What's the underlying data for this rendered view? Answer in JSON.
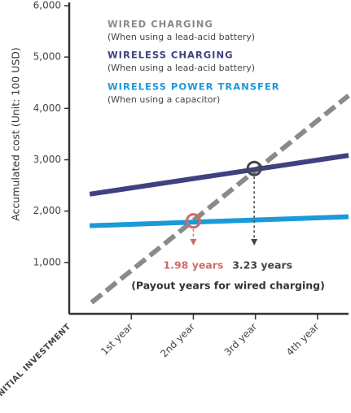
{
  "chart_data": {
    "type": "line",
    "y_label": "Accumulated cost (Unit: 100 USD)",
    "xlim": [
      0,
      4.5
    ],
    "ylim": [
      0,
      6000
    ],
    "xticks": [
      {
        "value": 0,
        "label": "INITIAL INVESTMENT"
      },
      {
        "value": 1,
        "label": "1st year"
      },
      {
        "value": 2,
        "label": "2nd year"
      },
      {
        "value": 3,
        "label": "3rd year"
      },
      {
        "value": 4,
        "label": "4th year"
      }
    ],
    "yticks": [
      {
        "value": 1000,
        "label": "1,000"
      },
      {
        "value": 2000,
        "label": "2,000"
      },
      {
        "value": 3000,
        "label": "3,000"
      },
      {
        "value": 4000,
        "label": "4,000"
      },
      {
        "value": 5000,
        "label": "5,000"
      },
      {
        "value": 6000,
        "label": "6,000"
      }
    ],
    "series": [
      {
        "name": "WIRED CHARGING",
        "description": "(When using a lead-acid battery)",
        "color": "#8a8a8a",
        "dashed": true,
        "x": [
          0.36,
          4.5
        ],
        "values": [
          220,
          4250
        ]
      },
      {
        "name": "WIRELESS CHARGING",
        "description": "(When using a lead-acid battery)",
        "color": "#3f4181",
        "dashed": false,
        "x": [
          0.33,
          4.5
        ],
        "values": [
          2330,
          3085
        ]
      },
      {
        "name": "WIRELESS POWER TRANSFER",
        "description": "(When using a capacitor)",
        "color": "#1b9ad8",
        "dashed": false,
        "x": [
          0.33,
          4.5
        ],
        "values": [
          1715,
          1890
        ]
      }
    ],
    "markers": [
      {
        "x": 2.0,
        "y": 1810,
        "color": "#d06a6a",
        "label": "1.98 years"
      },
      {
        "x": 2.98,
        "y": 2830,
        "color": "#444444",
        "label": "3.23 years"
      }
    ],
    "note": "(Payout years for wired charging)"
  }
}
